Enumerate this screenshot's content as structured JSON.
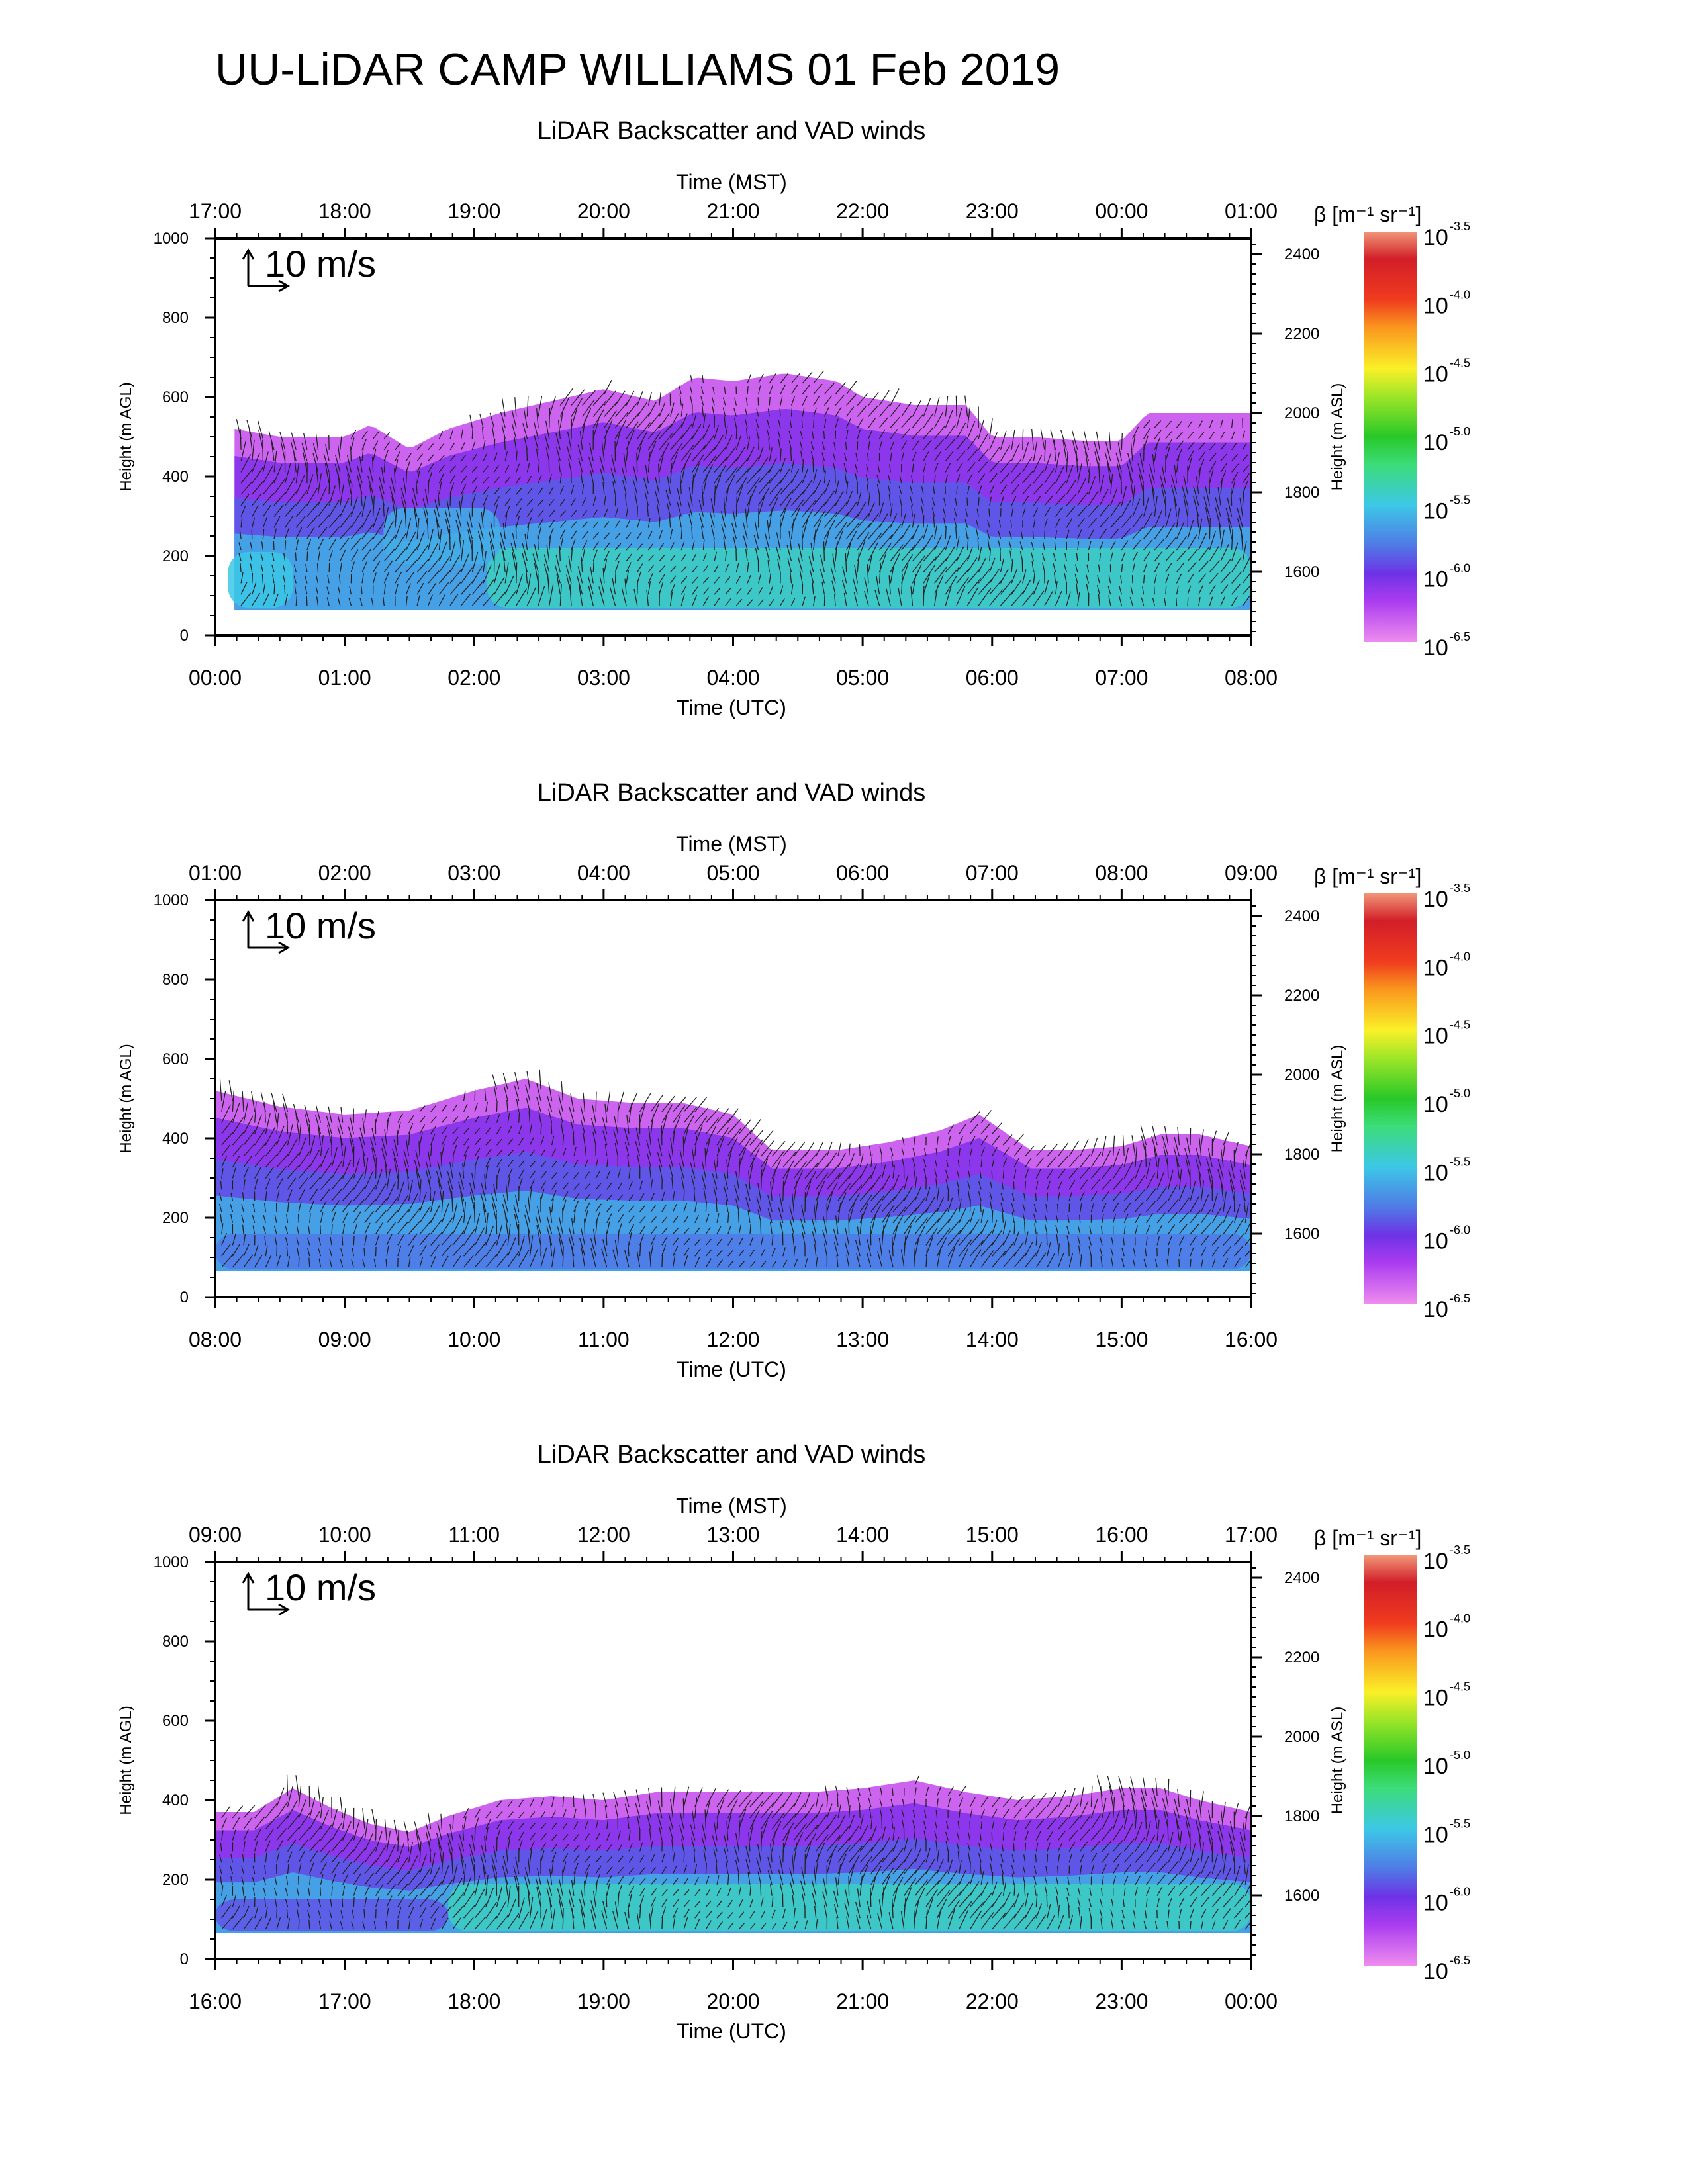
{
  "figure": {
    "title": "UU-LiDAR CAMP WILLIAMS 01 Feb 2019"
  },
  "chart_data": [
    {
      "type": "heatmap",
      "title": "LiDAR Backscatter and VAD winds",
      "top_axis_label": "Time (MST)",
      "bottom_axis_label": "Time (UTC)",
      "ylabel_left": "Height (m AGL)",
      "ylabel_right": "Height (m ASL)",
      "scale_arrow_label": "10 m/s",
      "colorbar_label": "β [m⁻¹ sr⁻¹]",
      "xticks_utc": [
        "00:00",
        "01:00",
        "02:00",
        "03:00",
        "04:00",
        "05:00",
        "06:00",
        "07:00",
        "08:00"
      ],
      "xticks_mst": [
        "17:00",
        "18:00",
        "19:00",
        "20:00",
        "21:00",
        "22:00",
        "23:00",
        "00:00",
        "01:00"
      ],
      "xlim_hours": [
        0,
        8
      ],
      "yticks_agl": [
        0,
        200,
        400,
        600,
        800,
        1000
      ],
      "ylim_agl": [
        0,
        1000
      ],
      "yticks_asl": [
        1600,
        1800,
        2000,
        2200,
        2400
      ],
      "asl_offset_m": 1440,
      "colorbar": {
        "log10_min": -6.5,
        "log10_max": -3.5,
        "tick_exponents": [
          "-3.5",
          "-4.0",
          "-4.5",
          "-5.0",
          "-5.5",
          "-6.0",
          "-6.5"
        ]
      },
      "data_bottom_m": 65,
      "cloud_top_profile": {
        "t_hours": [
          0.15,
          0.5,
          1.0,
          1.2,
          1.5,
          1.8,
          2.2,
          2.6,
          3.0,
          3.4,
          3.7,
          4.0,
          4.4,
          4.8,
          5.0,
          5.4,
          5.8,
          6.0,
          6.3,
          6.7,
          7.0,
          7.2,
          7.6,
          8.0
        ],
        "top_m": [
          520,
          500,
          500,
          530,
          470,
          520,
          560,
          590,
          620,
          590,
          650,
          640,
          660,
          640,
          600,
          580,
          580,
          500,
          500,
          490,
          490,
          560,
          560,
          560
        ]
      },
      "green_regions": [
        {
          "t0": 0.1,
          "t1": 0.6,
          "h0": 70,
          "h1": 210,
          "level": -5.5
        },
        {
          "t0": 2.1,
          "t1": 8.0,
          "h0": 70,
          "h1": 220,
          "level": -5.4
        },
        {
          "t0": 1.3,
          "t1": 2.2,
          "h0": 180,
          "h1": 320,
          "level": -5.6
        }
      ]
    },
    {
      "type": "heatmap",
      "title": "LiDAR Backscatter and VAD winds",
      "top_axis_label": "Time (MST)",
      "bottom_axis_label": "Time (UTC)",
      "ylabel_left": "Height (m AGL)",
      "ylabel_right": "Height (m ASL)",
      "scale_arrow_label": "10 m/s",
      "colorbar_label": "β [m⁻¹ sr⁻¹]",
      "xticks_utc": [
        "08:00",
        "09:00",
        "10:00",
        "11:00",
        "12:00",
        "13:00",
        "14:00",
        "15:00",
        "16:00"
      ],
      "xticks_mst": [
        "01:00",
        "02:00",
        "03:00",
        "04:00",
        "05:00",
        "06:00",
        "07:00",
        "08:00",
        "09:00"
      ],
      "xlim_hours": [
        0,
        8
      ],
      "yticks_agl": [
        0,
        200,
        400,
        600,
        800,
        1000
      ],
      "ylim_agl": [
        0,
        1000
      ],
      "yticks_asl": [
        1600,
        1800,
        2000,
        2200,
        2400
      ],
      "asl_offset_m": 1440,
      "colorbar": {
        "log10_min": -6.5,
        "log10_max": -3.5,
        "tick_exponents": [
          "-3.5",
          "-4.0",
          "-4.5",
          "-5.0",
          "-5.5",
          "-6.0",
          "-6.5"
        ]
      },
      "data_bottom_m": 65,
      "cloud_top_profile": {
        "t_hours": [
          0.0,
          0.5,
          1.0,
          1.5,
          2.0,
          2.4,
          2.8,
          3.2,
          3.6,
          4.0,
          4.3,
          4.8,
          5.2,
          5.6,
          5.9,
          6.3,
          6.6,
          7.0,
          7.3,
          7.6,
          8.0
        ],
        "top_m": [
          520,
          480,
          460,
          470,
          520,
          550,
          500,
          490,
          490,
          460,
          370,
          370,
          390,
          420,
          460,
          370,
          370,
          380,
          410,
          410,
          380
        ]
      },
      "green_regions": [
        {
          "t0": 0.0,
          "t1": 8.0,
          "h0": 70,
          "h1": 160,
          "level": -5.8
        }
      ]
    },
    {
      "type": "heatmap",
      "title": "LiDAR Backscatter and VAD winds",
      "top_axis_label": "Time (MST)",
      "bottom_axis_label": "Time (UTC)",
      "ylabel_left": "Height (m AGL)",
      "ylabel_right": "Height (m ASL)",
      "scale_arrow_label": "10 m/s",
      "colorbar_label": "β [m⁻¹ sr⁻¹]",
      "xticks_utc": [
        "16:00",
        "17:00",
        "18:00",
        "19:00",
        "20:00",
        "21:00",
        "22:00",
        "23:00",
        "00:00"
      ],
      "xticks_mst": [
        "09:00",
        "10:00",
        "11:00",
        "12:00",
        "13:00",
        "14:00",
        "15:00",
        "16:00",
        "17:00"
      ],
      "xlim_hours": [
        0,
        8
      ],
      "yticks_agl": [
        0,
        200,
        400,
        600,
        800,
        1000
      ],
      "ylim_agl": [
        0,
        1000
      ],
      "yticks_asl": [
        1600,
        1800,
        2000,
        2200,
        2400
      ],
      "asl_offset_m": 1440,
      "colorbar": {
        "log10_min": -6.5,
        "log10_max": -3.5,
        "tick_exponents": [
          "-3.5",
          "-4.0",
          "-4.5",
          "-5.0",
          "-5.5",
          "-6.0",
          "-6.5"
        ]
      },
      "data_bottom_m": 65,
      "cloud_top_profile": {
        "t_hours": [
          0.0,
          0.3,
          0.6,
          0.9,
          1.2,
          1.5,
          1.8,
          2.2,
          2.6,
          3.0,
          3.4,
          3.8,
          4.2,
          4.6,
          5.0,
          5.4,
          5.8,
          6.2,
          6.6,
          7.0,
          7.3,
          7.6,
          8.0
        ],
        "top_m": [
          370,
          370,
          430,
          380,
          340,
          320,
          360,
          400,
          410,
          400,
          420,
          420,
          420,
          420,
          430,
          450,
          420,
          400,
          410,
          430,
          430,
          400,
          370
        ]
      },
      "green_regions": [
        {
          "t0": 1.8,
          "t1": 8.0,
          "h0": 70,
          "h1": 190,
          "level": -5.4
        },
        {
          "t0": 0.0,
          "t1": 1.8,
          "h0": 70,
          "h1": 150,
          "level": -5.9
        }
      ]
    }
  ]
}
